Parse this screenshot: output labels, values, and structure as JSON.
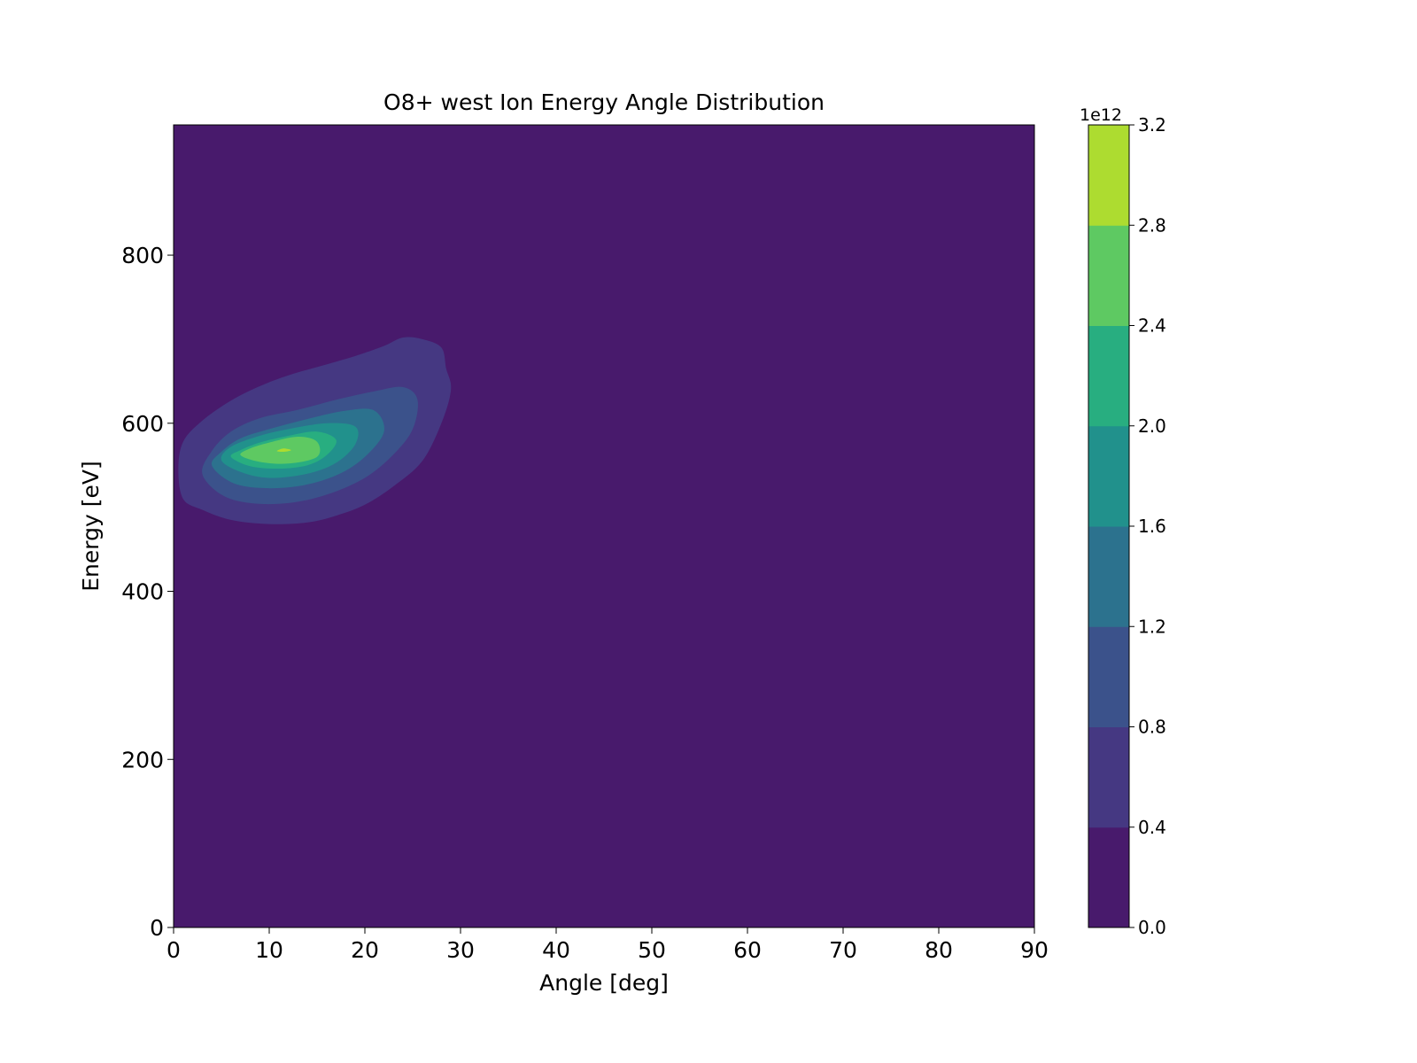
{
  "chart_data": {
    "type": "contour",
    "title": "O8+  west Ion Energy Angle Distribution",
    "xlabel": "Angle [deg]",
    "ylabel": "Energy [eV]",
    "xlim": [
      0,
      90
    ],
    "ylim": [
      0,
      955
    ],
    "xticks": [
      0,
      10,
      20,
      30,
      40,
      50,
      60,
      70,
      80,
      90
    ],
    "yticks": [
      0,
      200,
      400,
      600,
      800
    ],
    "grid": false,
    "colorbar": {
      "label": "",
      "offset_text": "1e12",
      "range": [
        0.0,
        3.2
      ],
      "levels": [
        0.0,
        0.4,
        0.8,
        1.2,
        1.6,
        2.0,
        2.4,
        2.8,
        3.2
      ],
      "tick_labels": [
        "0.0",
        "0.4",
        "0.8",
        "1.2",
        "1.6",
        "2.0",
        "2.4",
        "2.8",
        "3.2"
      ],
      "colors": [
        "#481a6c",
        "#453882",
        "#3b528b",
        "#2c728e",
        "#21918c",
        "#28ae80",
        "#5ec962",
        "#addc30",
        "#d2e21b"
      ]
    },
    "distribution": {
      "peak_angle_deg": 11,
      "peak_energy_eV": 568,
      "peak_value": 3.0,
      "description_units": "counts x 1e12"
    },
    "contour_regions": [
      {
        "level": 0.4,
        "points": [
          [
            0.5,
            545
          ],
          [
            1,
            510
          ],
          [
            3,
            497
          ],
          [
            6,
            485
          ],
          [
            10,
            480
          ],
          [
            14,
            482
          ],
          [
            17,
            490
          ],
          [
            20,
            503
          ],
          [
            23,
            525
          ],
          [
            26,
            555
          ],
          [
            28,
            600
          ],
          [
            29,
            640
          ],
          [
            28.5,
            665
          ],
          [
            28,
            690
          ],
          [
            26,
            700
          ],
          [
            24,
            702
          ],
          [
            22,
            692
          ],
          [
            19,
            680
          ],
          [
            16,
            670
          ],
          [
            12,
            657
          ],
          [
            9,
            644
          ],
          [
            6,
            627
          ],
          [
            3,
            603
          ],
          [
            1,
            578
          ]
        ]
      },
      {
        "level": 0.8,
        "points": [
          [
            3,
            540
          ],
          [
            5,
            515
          ],
          [
            8,
            505
          ],
          [
            12,
            505
          ],
          [
            16,
            515
          ],
          [
            20,
            535
          ],
          [
            23,
            563
          ],
          [
            25,
            593
          ],
          [
            25.5,
            628
          ],
          [
            24,
            643
          ],
          [
            21,
            638
          ],
          [
            17,
            628
          ],
          [
            13,
            616
          ],
          [
            9,
            606
          ],
          [
            6,
            590
          ],
          [
            4,
            567
          ]
        ]
      },
      {
        "level": 1.2,
        "points": [
          [
            4,
            550
          ],
          [
            6,
            530
          ],
          [
            9,
            523
          ],
          [
            13,
            525
          ],
          [
            17,
            538
          ],
          [
            20,
            560
          ],
          [
            22,
            590
          ],
          [
            21,
            615
          ],
          [
            18,
            615
          ],
          [
            14,
            605
          ],
          [
            10,
            593
          ],
          [
            7,
            582
          ],
          [
            5,
            566
          ]
        ]
      },
      {
        "level": 1.6,
        "points": [
          [
            5,
            556
          ],
          [
            7,
            542
          ],
          [
            10,
            535
          ],
          [
            14,
            540
          ],
          [
            17,
            553
          ],
          [
            19,
            575
          ],
          [
            19,
            596
          ],
          [
            16,
            600
          ],
          [
            12,
            593
          ],
          [
            9,
            585
          ],
          [
            6,
            572
          ]
        ]
      },
      {
        "level": 2.0,
        "points": [
          [
            6,
            560
          ],
          [
            8,
            549
          ],
          [
            11,
            546
          ],
          [
            14,
            550
          ],
          [
            16,
            562
          ],
          [
            17,
            580
          ],
          [
            15,
            590
          ],
          [
            12,
            585
          ],
          [
            9,
            577
          ],
          [
            7,
            568
          ]
        ]
      },
      {
        "level": 2.4,
        "points": [
          [
            7,
            562
          ],
          [
            9,
            554
          ],
          [
            12,
            552
          ],
          [
            15,
            560
          ],
          [
            15,
            578
          ],
          [
            13,
            584
          ],
          [
            10,
            577
          ],
          [
            8,
            570
          ]
        ]
      },
      {
        "level": 2.8,
        "points": [
          [
            10.8,
            567
          ],
          [
            11.5,
            566
          ],
          [
            12.3,
            568
          ],
          [
            11.5,
            570
          ]
        ]
      }
    ]
  }
}
